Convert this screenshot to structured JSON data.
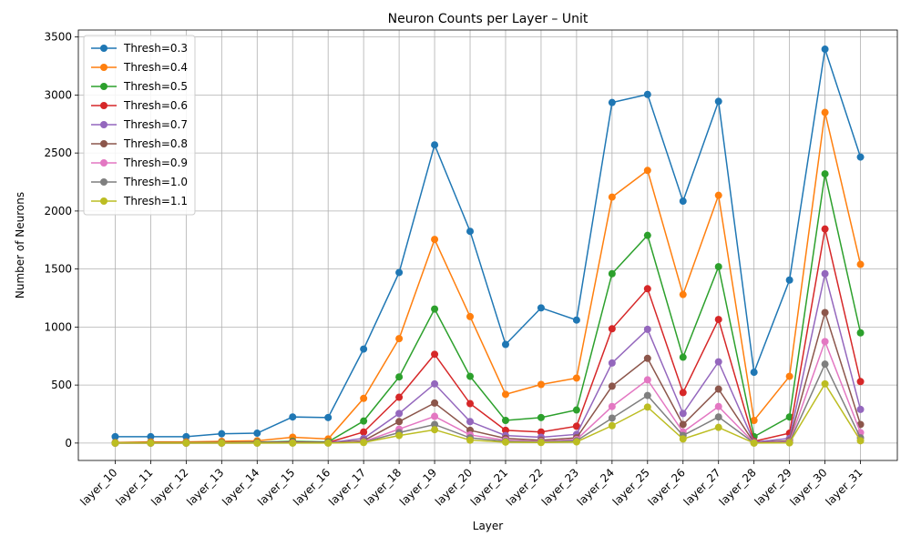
{
  "chart_data": {
    "type": "line",
    "title": "Neuron Counts per Layer – Unit",
    "xlabel": "Layer",
    "ylabel": "Number of Neurons",
    "ylim": [
      -150,
      3560
    ],
    "yticks": [
      0,
      500,
      1000,
      1500,
      2000,
      2500,
      3000,
      3500
    ],
    "grid": true,
    "legend_position": "top-left",
    "categories": [
      "layer_10",
      "layer_11",
      "layer_12",
      "layer_13",
      "layer_14",
      "layer_15",
      "layer_16",
      "layer_17",
      "layer_18",
      "layer_19",
      "layer_20",
      "layer_21",
      "layer_22",
      "layer_23",
      "layer_24",
      "layer_25",
      "layer_26",
      "layer_27",
      "layer_28",
      "layer_29",
      "layer_30",
      "layer_31"
    ],
    "series": [
      {
        "name": "Thresh=0.3",
        "color": "#1f77b4",
        "values": [
          55,
          55,
          55,
          80,
          85,
          225,
          220,
          810,
          1470,
          2570,
          1825,
          850,
          1165,
          1060,
          2935,
          3005,
          2085,
          2945,
          610,
          1405,
          3395,
          2465
        ]
      },
      {
        "name": "Thresh=0.4",
        "color": "#ff7f0e",
        "values": [
          5,
          10,
          10,
          15,
          20,
          50,
          35,
          385,
          900,
          1755,
          1090,
          420,
          505,
          560,
          2120,
          2350,
          1280,
          2135,
          195,
          575,
          2850,
          1540
        ]
      },
      {
        "name": "Thresh=0.5",
        "color": "#2ca02c",
        "values": [
          2,
          3,
          3,
          5,
          8,
          15,
          10,
          190,
          570,
          1155,
          575,
          195,
          220,
          285,
          1460,
          1790,
          740,
          1520,
          55,
          225,
          2320,
          950
        ]
      },
      {
        "name": "Thresh=0.6",
        "color": "#d62728",
        "values": [
          1,
          2,
          2,
          3,
          5,
          8,
          5,
          95,
          395,
          765,
          340,
          110,
          95,
          145,
          985,
          1330,
          435,
          1065,
          15,
          85,
          1845,
          530
        ]
      },
      {
        "name": "Thresh=0.7",
        "color": "#9467bd",
        "values": [
          0,
          1,
          1,
          2,
          3,
          5,
          3,
          40,
          255,
          510,
          185,
          65,
          50,
          75,
          690,
          980,
          255,
          700,
          8,
          40,
          1460,
          290
        ]
      },
      {
        "name": "Thresh=0.8",
        "color": "#8c564b",
        "values": [
          0,
          0,
          0,
          1,
          2,
          3,
          2,
          20,
          185,
          345,
          110,
          40,
          25,
          45,
          490,
          730,
          160,
          465,
          4,
          20,
          1125,
          160
        ]
      },
      {
        "name": "Thresh=0.9",
        "color": "#e377c2",
        "values": [
          0,
          0,
          0,
          0,
          1,
          2,
          1,
          12,
          120,
          230,
          70,
          25,
          15,
          30,
          315,
          545,
          95,
          315,
          2,
          10,
          875,
          90
        ]
      },
      {
        "name": "Thresh=1.0",
        "color": "#7f7f7f",
        "values": [
          0,
          0,
          0,
          0,
          0,
          1,
          1,
          8,
          90,
          160,
          45,
          15,
          10,
          20,
          215,
          410,
          65,
          225,
          1,
          5,
          680,
          45
        ]
      },
      {
        "name": "Thresh=1.1",
        "color": "#bcbd22",
        "values": [
          0,
          0,
          0,
          0,
          0,
          0,
          0,
          5,
          65,
          115,
          25,
          8,
          5,
          10,
          150,
          310,
          35,
          135,
          0,
          2,
          510,
          20
        ]
      }
    ]
  }
}
